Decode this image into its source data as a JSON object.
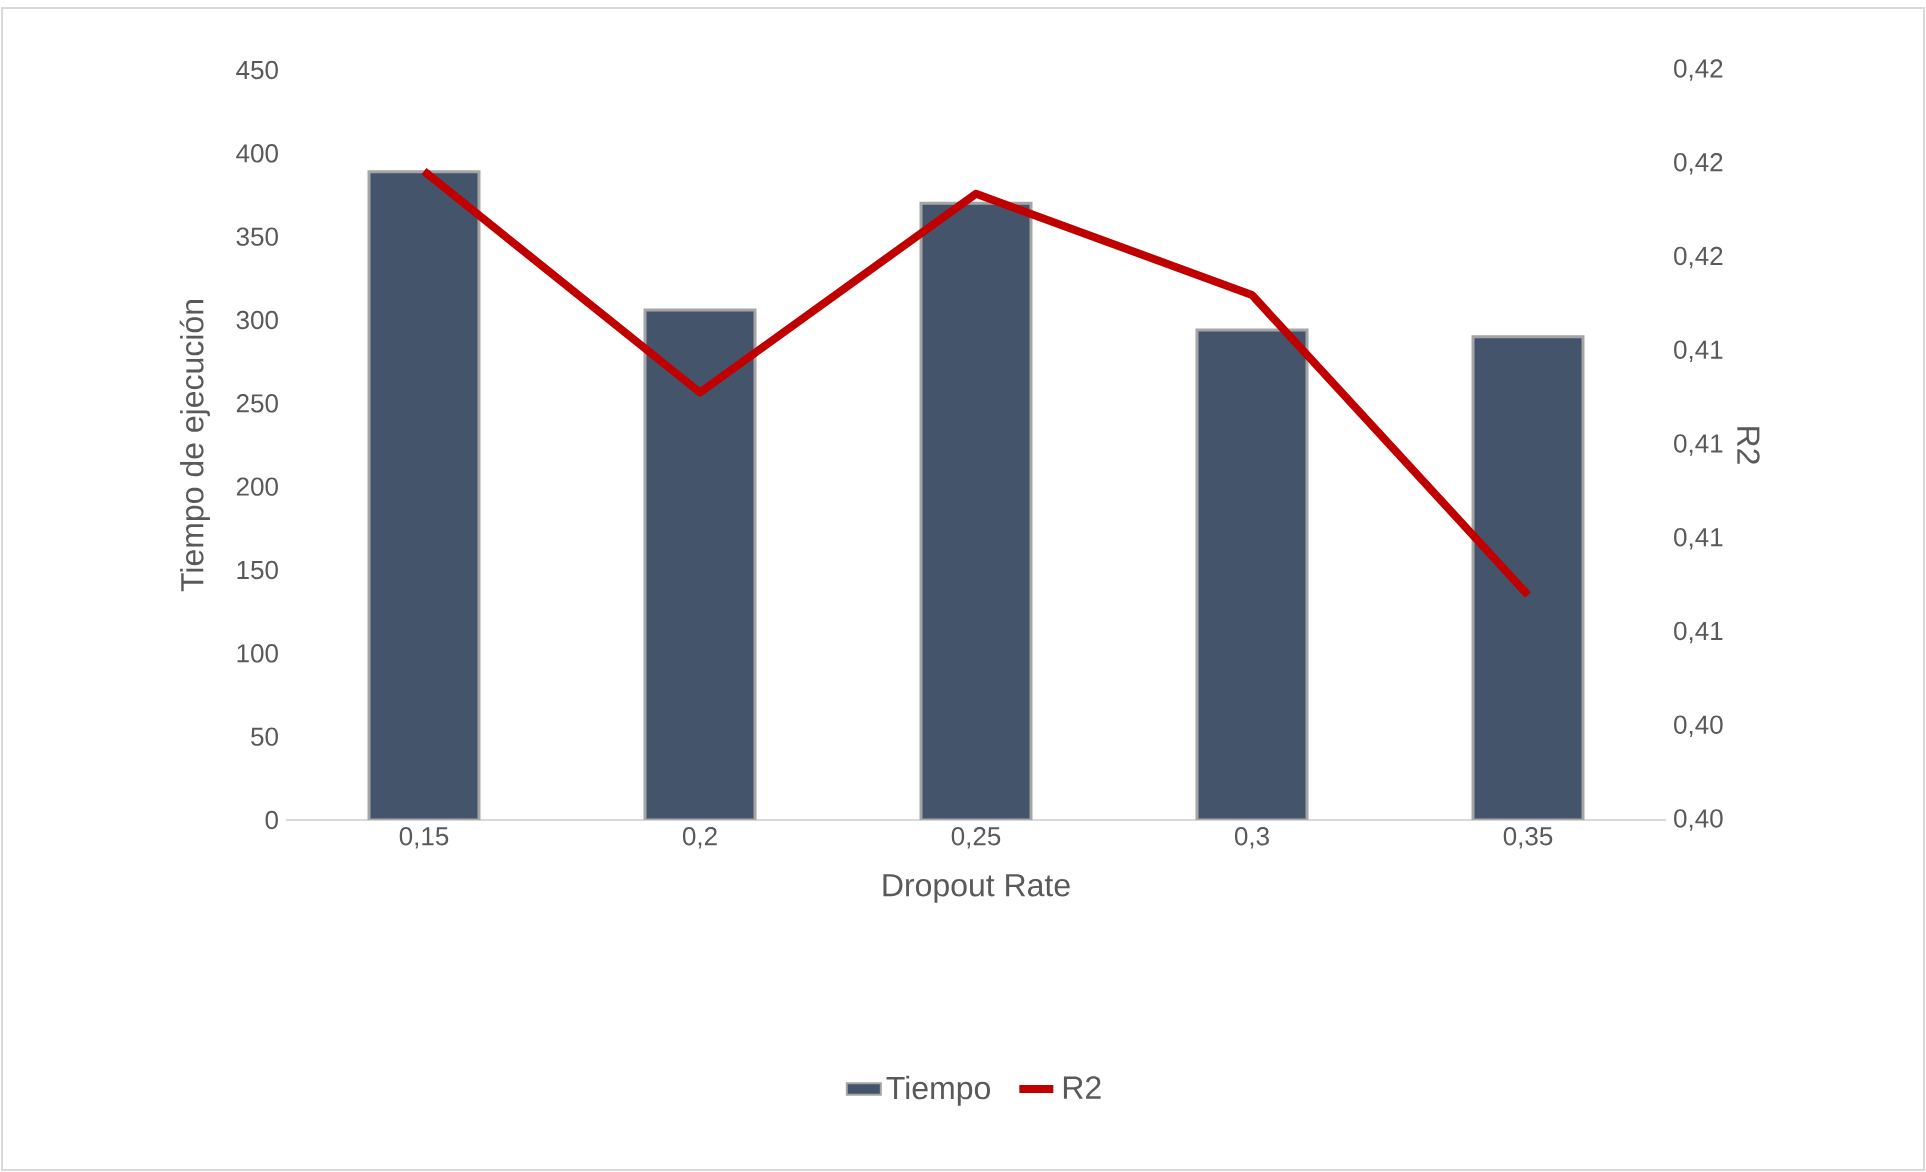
{
  "chart_data": {
    "type": "bar",
    "xlabel": "Dropout Rate",
    "ylabel": "Tiempo de ejecución",
    "y2label": "R2",
    "categories": [
      "0,15",
      "0,2",
      "0,25",
      "0,3",
      "0,35"
    ],
    "series": [
      {
        "name": "Tiempo",
        "color": "#44546a",
        "values": [
          389,
          306,
          370,
          294,
          290
        ]
      },
      {
        "name": "R2",
        "type": "line",
        "axis": "y2",
        "color": "#c00000",
        "values": [
          0.4173,
          0.4114,
          0.4167,
          0.414,
          0.406
        ]
      }
    ],
    "ylim": [
      0,
      450
    ],
    "yticks": [
      0,
      50,
      100,
      150,
      200,
      250,
      300,
      350,
      400,
      450
    ],
    "y2lim": [
      0.4,
      0.42
    ],
    "y2ticks": [
      {
        "value": 0.4,
        "label": "0,40"
      },
      {
        "value": 0.4025,
        "label": "0,40"
      },
      {
        "value": 0.405,
        "label": "0,41"
      },
      {
        "value": 0.4075,
        "label": "0,41"
      },
      {
        "value": 0.41,
        "label": "0,41"
      },
      {
        "value": 0.4125,
        "label": "0,41"
      },
      {
        "value": 0.415,
        "label": "0,42"
      },
      {
        "value": 0.4175,
        "label": "0,42"
      },
      {
        "value": 0.42,
        "label": "0,42"
      }
    ],
    "legend": "bottom"
  }
}
